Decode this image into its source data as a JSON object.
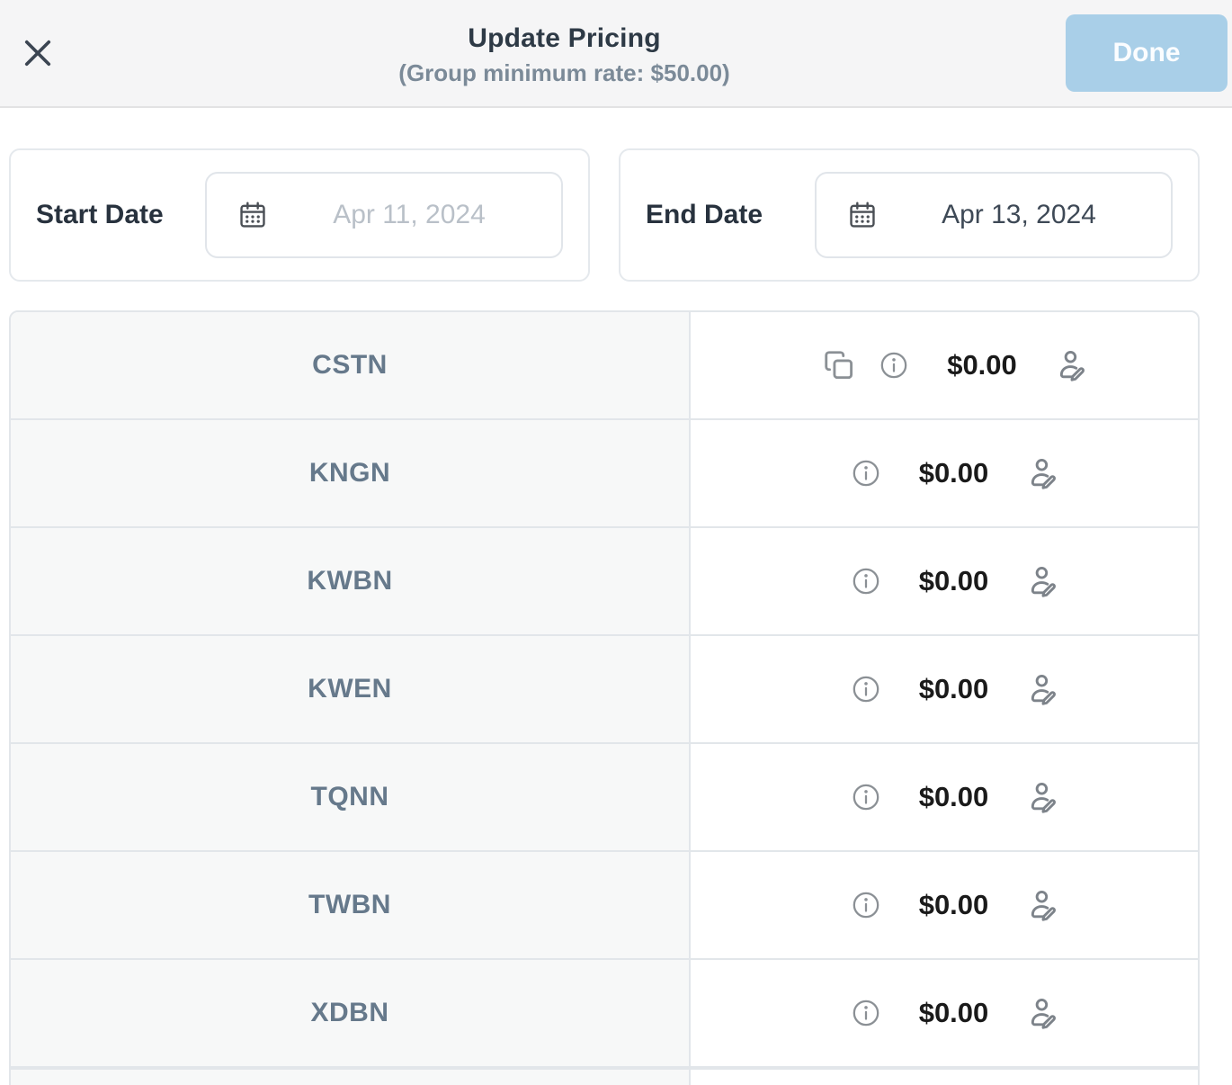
{
  "header": {
    "title": "Update Pricing",
    "subtitle": "(Group minimum rate: $50.00)",
    "done_label": "Done"
  },
  "dates": {
    "start": {
      "label": "Start Date",
      "placeholder": "Apr 11, 2024",
      "value": ""
    },
    "end": {
      "label": "End Date",
      "value": "Apr 13, 2024"
    }
  },
  "pricing_table": {
    "rows": [
      {
        "code": "CSTN",
        "price": "$0.00",
        "has_copy_action": true
      },
      {
        "code": "KNGN",
        "price": "$0.00",
        "has_copy_action": false
      },
      {
        "code": "KWBN",
        "price": "$0.00",
        "has_copy_action": false
      },
      {
        "code": "KWEN",
        "price": "$0.00",
        "has_copy_action": false
      },
      {
        "code": "TQNN",
        "price": "$0.00",
        "has_copy_action": false
      },
      {
        "code": "TWBN",
        "price": "$0.00",
        "has_copy_action": false
      },
      {
        "code": "XDBN",
        "price": "$0.00",
        "has_copy_action": false
      }
    ]
  },
  "icons": {
    "close": "x-icon",
    "calendar": "calendar-icon",
    "copy": "copy-icon",
    "info": "info-icon",
    "edit": "user-edit-icon"
  },
  "colors": {
    "accent_button": "#a9cfe8",
    "header_bg": "#f5f5f6",
    "row_code_bg": "#f7f8f8",
    "border": "#e2e6ea",
    "code_text": "#66798b",
    "title_text": "#2e3a46",
    "subtitle_text": "#7b8a98"
  }
}
